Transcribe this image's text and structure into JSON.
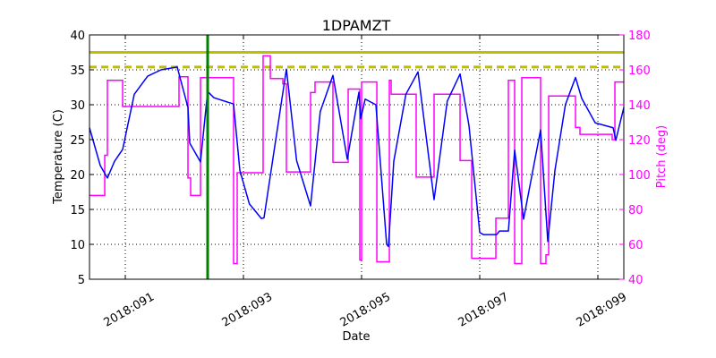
{
  "chart_data": {
    "type": "line",
    "title": "1DPAMZT",
    "xlabel": "Date",
    "ylabel": "Temperature (C)",
    "y2label": "Pitch (deg)",
    "xlim": [
      90.394,
      99.439
    ],
    "ylim": [
      5,
      40
    ],
    "y2lim": [
      40,
      180
    ],
    "grid": true,
    "x_ticks": [
      {
        "value": 91,
        "label": "2018:091"
      },
      {
        "value": 93,
        "label": "2018:093"
      },
      {
        "value": 95,
        "label": "2018:095"
      },
      {
        "value": 97,
        "label": "2018:097"
      },
      {
        "value": 99,
        "label": "2018:099"
      }
    ],
    "y_ticks": [
      5,
      10,
      15,
      20,
      25,
      30,
      35,
      40
    ],
    "y2_ticks": [
      40,
      60,
      80,
      100,
      120,
      140,
      160,
      180
    ],
    "colors": {
      "temperature": "#0000ff",
      "pitch": "#ff00ff",
      "limits": "#bfbf00",
      "now_line": "#008000",
      "axis_right": "#ff00ff"
    },
    "limit_lines": [
      {
        "value": 37.5,
        "style": "solid"
      },
      {
        "value": 35.4,
        "style": "dashed"
      }
    ],
    "vertical_line": {
      "x": 92.394
    },
    "series": [
      {
        "axis": "left",
        "points": [
          [
            90.394,
            26.7
          ],
          [
            90.576,
            21.3
          ],
          [
            90.697,
            19.5
          ],
          [
            90.818,
            21.9
          ],
          [
            90.955,
            23.6
          ],
          [
            91.152,
            31.5
          ],
          [
            91.379,
            34.1
          ],
          [
            91.606,
            35.0
          ],
          [
            91.879,
            35.4
          ],
          [
            92.061,
            29.6
          ],
          [
            92.091,
            24.5
          ],
          [
            92.273,
            21.8
          ],
          [
            92.394,
            31.9
          ],
          [
            92.5,
            31.0
          ],
          [
            92.833,
            30.1
          ],
          [
            92.939,
            20.6
          ],
          [
            93.1,
            15.8
          ],
          [
            93.303,
            13.7
          ],
          [
            93.348,
            13.8
          ],
          [
            93.727,
            35.1
          ],
          [
            93.9,
            22.0
          ],
          [
            94.136,
            15.5
          ],
          [
            94.3,
            29.0
          ],
          [
            94.515,
            34.2
          ],
          [
            94.758,
            22.2
          ],
          [
            94.955,
            31.8
          ],
          [
            94.985,
            28.0
          ],
          [
            95.061,
            30.8
          ],
          [
            95.242,
            30.0
          ],
          [
            95.424,
            10.0
          ],
          [
            95.455,
            9.7
          ],
          [
            95.545,
            21.9
          ],
          [
            95.75,
            31.5
          ],
          [
            95.955,
            34.7
          ],
          [
            96.227,
            16.4
          ],
          [
            96.45,
            30.5
          ],
          [
            96.667,
            34.4
          ],
          [
            96.818,
            27.0
          ],
          [
            97.0,
            11.7
          ],
          [
            97.061,
            11.4
          ],
          [
            97.288,
            11.4
          ],
          [
            97.333,
            11.9
          ],
          [
            97.485,
            11.9
          ],
          [
            97.591,
            23.5
          ],
          [
            97.742,
            13.6
          ],
          [
            98.03,
            26.4
          ],
          [
            98.152,
            10.4
          ],
          [
            98.273,
            20.6
          ],
          [
            98.45,
            30.0
          ],
          [
            98.621,
            33.9
          ],
          [
            98.727,
            30.9
          ],
          [
            98.955,
            27.4
          ],
          [
            99.258,
            26.7
          ],
          [
            99.303,
            24.9
          ],
          [
            99.439,
            29.6
          ]
        ]
      },
      {
        "axis": "right",
        "step": "post",
        "points": [
          [
            90.394,
            88
          ],
          [
            90.652,
            111
          ],
          [
            90.697,
            154
          ],
          [
            90.955,
            139
          ],
          [
            91.909,
            156
          ],
          [
            92.061,
            98
          ],
          [
            92.106,
            88
          ],
          [
            92.273,
            155.5
          ],
          [
            92.833,
            49
          ],
          [
            92.894,
            101
          ],
          [
            93.333,
            168
          ],
          [
            93.455,
            155
          ],
          [
            93.667,
            152
          ],
          [
            93.727,
            101.5
          ],
          [
            94.136,
            147
          ],
          [
            94.212,
            153
          ],
          [
            94.515,
            107
          ],
          [
            94.773,
            149
          ],
          [
            94.97,
            51
          ],
          [
            95.0,
            153
          ],
          [
            95.258,
            50
          ],
          [
            95.47,
            154
          ],
          [
            95.5,
            146
          ],
          [
            95.924,
            98.5
          ],
          [
            96.227,
            146
          ],
          [
            96.667,
            108
          ],
          [
            96.864,
            52
          ],
          [
            97.273,
            75
          ],
          [
            97.485,
            154
          ],
          [
            97.591,
            49
          ],
          [
            97.712,
            155.5
          ],
          [
            98.03,
            49
          ],
          [
            98.121,
            54
          ],
          [
            98.167,
            145
          ],
          [
            98.621,
            127
          ],
          [
            98.697,
            123
          ],
          [
            99.242,
            120
          ],
          [
            99.288,
            153
          ],
          [
            99.439,
            153
          ]
        ]
      }
    ]
  }
}
